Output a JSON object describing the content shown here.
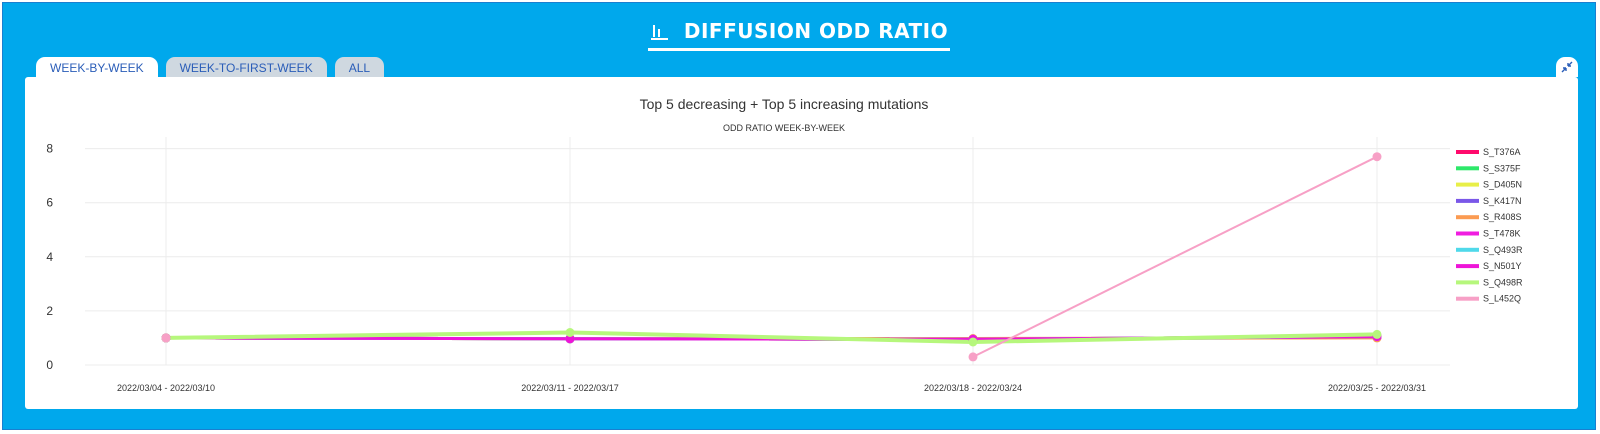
{
  "header": {
    "title": "DIFFUSION ODD RATIO",
    "icon": "bar-chart-icon"
  },
  "tabs": [
    {
      "label": "WEEK-BY-WEEK",
      "active": true
    },
    {
      "label": "WEEK-TO-FIRST-WEEK",
      "active": false
    },
    {
      "label": "ALL",
      "active": false
    }
  ],
  "collapse_icon": "collapse-arrows-icon",
  "chart_data": {
    "type": "line",
    "title": "Top 5 decreasing + Top 5 increasing mutations",
    "subtitle": "ODD RATIO WEEK-BY-WEEK",
    "xlabel": "",
    "ylabel": "",
    "categories": [
      "2022/03/04 - 2022/03/10",
      "2022/03/11 - 2022/03/17",
      "2022/03/18 - 2022/03/24",
      "2022/03/25 - 2022/03/31"
    ],
    "y_ticks": [
      0,
      2,
      4,
      6,
      8
    ],
    "ylim": [
      0,
      8.4
    ],
    "grid": true,
    "legend_position": "right",
    "series": [
      {
        "name": "S_T376A",
        "color": "#ff0a6c",
        "values": [
          1.0,
          0.97,
          0.95,
          1.05
        ]
      },
      {
        "name": "S_S375F",
        "color": "#2ee86a",
        "values": [
          1.0,
          0.97,
          0.95,
          1.05
        ]
      },
      {
        "name": "S_D405N",
        "color": "#e8ef48",
        "values": [
          1.0,
          0.97,
          0.95,
          1.05
        ]
      },
      {
        "name": "S_K417N",
        "color": "#7a57e8",
        "values": [
          1.0,
          0.97,
          0.95,
          1.02
        ]
      },
      {
        "name": "S_R408S",
        "color": "#fb9b52",
        "values": [
          1.0,
          0.97,
          0.98,
          1.0
        ]
      },
      {
        "name": "S_T478K",
        "color": "#f01de0",
        "values": [
          1.0,
          0.97,
          0.95,
          1.05
        ]
      },
      {
        "name": "S_Q493R",
        "color": "#4fd9ea",
        "values": [
          1.0,
          0.97,
          0.95,
          1.05
        ]
      },
      {
        "name": "S_N501Y",
        "color": "#ee15d8",
        "values": [
          1.0,
          0.97,
          0.95,
          1.05
        ]
      },
      {
        "name": "S_Q498R",
        "color": "#b6f77c",
        "values": [
          1.0,
          1.2,
          0.85,
          1.13
        ]
      },
      {
        "name": "S_L452Q",
        "color": "#f7a0c6",
        "values": [
          1.0,
          null,
          0.3,
          7.7
        ]
      }
    ]
  }
}
